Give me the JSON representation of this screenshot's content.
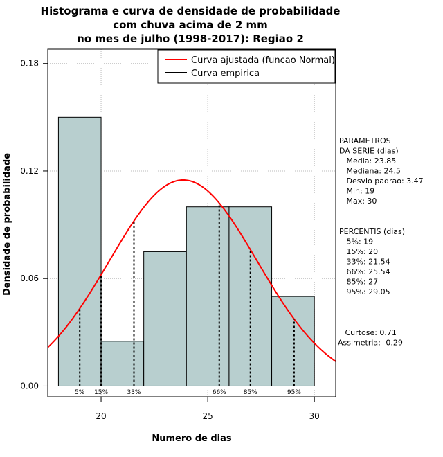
{
  "chart_data": {
    "type": "bar",
    "title_lines": [
      "Histograma e curva de densidade de probabilidade",
      "com chuva acima de 2 mm",
      "no mes de julho (1998-2017): Regiao 2"
    ],
    "xlabel": "Numero de dias",
    "ylabel": "Densidade de probabilidade",
    "xlim": [
      17.5,
      31
    ],
    "ylim": [
      -0.006,
      0.188
    ],
    "x_ticks": [
      20,
      25,
      30
    ],
    "y_ticks": [
      0.0,
      0.06,
      0.12,
      0.18
    ],
    "y_tick_labels": [
      "0.00",
      "0.06",
      "0.12",
      "0.18"
    ],
    "grid": true,
    "bars": [
      {
        "x0": 18,
        "x1": 20,
        "value": 0.15
      },
      {
        "x0": 20,
        "x1": 22,
        "value": 0.025
      },
      {
        "x0": 22,
        "x1": 24,
        "value": 0.075
      },
      {
        "x0": 24,
        "x1": 26,
        "value": 0.1
      },
      {
        "x0": 26,
        "x1": 28,
        "value": 0.1
      },
      {
        "x0": 28,
        "x1": 30,
        "value": 0.05
      }
    ],
    "normal_curve": {
      "mean": 23.85,
      "sd": 3.47,
      "color": "#ff0000"
    },
    "percentile_lines": [
      {
        "label": "5%",
        "x": 19
      },
      {
        "label": "15%",
        "x": 20
      },
      {
        "label": "33%",
        "x": 21.54
      },
      {
        "label": "66%",
        "x": 25.54
      },
      {
        "label": "85%",
        "x": 27
      },
      {
        "label": "95%",
        "x": 29.05
      }
    ],
    "legend": {
      "position": "top-right",
      "entries": [
        {
          "label": "Curva ajustada (funcao Normal)",
          "color": "#ff0000"
        },
        {
          "label": "Curva empirica",
          "color": "#000000"
        }
      ]
    },
    "colors": {
      "bar_fill": "#b8cfcf",
      "curve": "#ff0000",
      "grid": "#bbbbbb"
    },
    "parametros": [
      "PARAMETROS",
      "DA SERIE (dias)",
      "   Media: 23.85",
      "   Mediana: 24.5",
      "   Desvio padrao: 3.47",
      "   Min: 19",
      "   Max: 30"
    ],
    "percentis": [
      "PERCENTIS (dias)",
      "   5%: 19",
      "   15%: 20",
      "   33%: 21.54",
      "   66%: 25.54",
      "   85%: 27",
      "   95%: 29.05"
    ],
    "stats": [
      "   Curtose: 0.71",
      "Assimetria: -0.29"
    ]
  }
}
